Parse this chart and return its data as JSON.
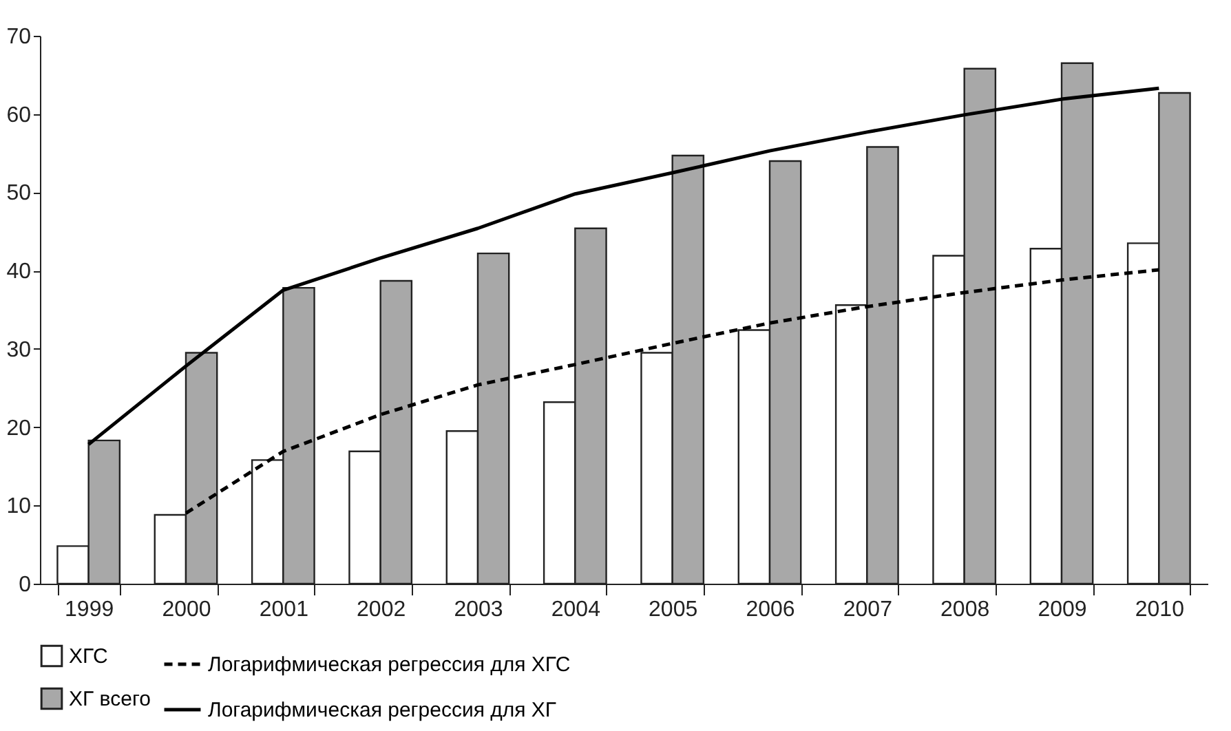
{
  "chart_data": {
    "type": "bar",
    "categories": [
      "1999",
      "2000",
      "2001",
      "2002",
      "2003",
      "2004",
      "2005",
      "2006",
      "2007",
      "2008",
      "2009",
      "2010"
    ],
    "ylim": [
      0,
      70
    ],
    "yticks": [
      0,
      10,
      20,
      30,
      40,
      50,
      60,
      70
    ],
    "grid": false,
    "legend": "bottom",
    "series": [
      {
        "name": "ХГС",
        "color": "#ffffff",
        "values": [
          4.8,
          8.8,
          15.8,
          16.9,
          19.5,
          23.2,
          29.5,
          32.4,
          35.6,
          41.9,
          42.8,
          43.5
        ]
      },
      {
        "name": "ХГ всего",
        "color": "#a8a8a8",
        "values": [
          18.3,
          29.5,
          37.8,
          38.7,
          42.2,
          45.4,
          54.7,
          54.0,
          55.8,
          65.8,
          66.5,
          62.7
        ]
      },
      {
        "name": "Логарифмическая регрессия для ХГС",
        "type": "line",
        "line_style": "dashed",
        "color": "#000000",
        "values": [
          null,
          9.0,
          16.9,
          21.6,
          25.4,
          28.0,
          30.7,
          33.3,
          35.4,
          37.2,
          38.8,
          40.1
        ]
      },
      {
        "name": "Логарифмическая регрессия для ХГ",
        "type": "line",
        "line_style": "solid",
        "color": "#000000",
        "values": [
          17.8,
          27.8,
          37.5,
          41.6,
          45.4,
          49.8,
          52.5,
          55.3,
          57.7,
          59.9,
          61.9,
          63.3
        ]
      }
    ]
  }
}
